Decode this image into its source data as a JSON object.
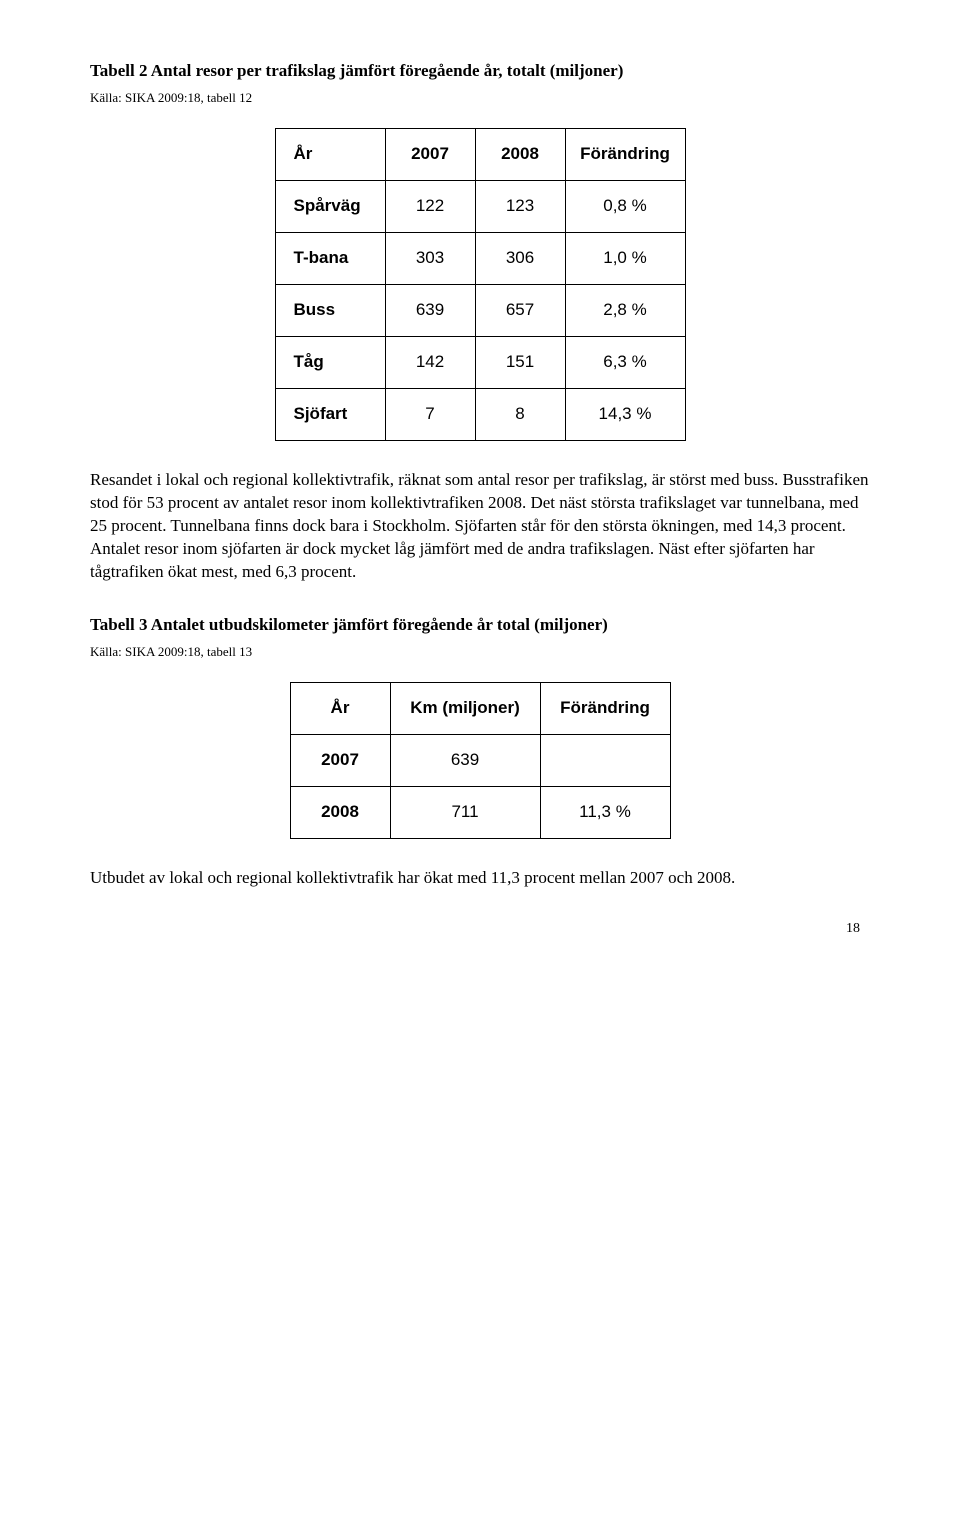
{
  "table1": {
    "title": "Tabell 2 Antal resor per trafikslag jämfört föregående år, totalt (miljoner)",
    "source": "Källa: SIKA 2009:18, tabell 12",
    "headers": {
      "h0": "År",
      "h1": "2007",
      "h2": "2008",
      "h3": "Förändring"
    },
    "rows": [
      {
        "label": "Spårväg",
        "y1": "122",
        "y2": "123",
        "ch": "0,8 %"
      },
      {
        "label": "T-bana",
        "y1": "303",
        "y2": "306",
        "ch": "1,0 %"
      },
      {
        "label": "Buss",
        "y1": "639",
        "y2": "657",
        "ch": "2,8 %"
      },
      {
        "label": "Tåg",
        "y1": "142",
        "y2": "151",
        "ch": "6,3 %"
      },
      {
        "label": "Sjöfart",
        "y1": "7",
        "y2": "8",
        "ch": "14,3 %"
      }
    ]
  },
  "paragraph1": "Resandet i lokal och regional kollektivtrafik, räknat som antal resor per trafikslag, är störst med buss. Busstrafiken stod för 53 procent av antalet resor inom kollektivtrafiken 2008. Det näst största trafikslaget var tunnelbana, med 25 procent. Tunnelbana finns dock bara i Stockholm. Sjöfarten står för den största ökningen, med 14,3 procent. Antalet resor inom sjöfarten är dock mycket låg jämfört med de andra trafikslagen. Näst efter sjöfarten har tågtrafiken ökat mest, med 6,3 procent.",
  "table2": {
    "title": "Tabell 3 Antalet utbudskilometer jämfört föregående år total (miljoner)",
    "source": "Källa: SIKA 2009:18, tabell 13",
    "headers": {
      "h0": "År",
      "h1": "Km (miljoner)",
      "h2": "Förändring"
    },
    "rows": [
      {
        "yr": "2007",
        "km": "639",
        "ch": ""
      },
      {
        "yr": "2008",
        "km": "711",
        "ch": "11,3 %"
      }
    ]
  },
  "paragraph2": "Utbudet av lokal och regional kollektivtrafik har ökat med 11,3 procent mellan 2007 och 2008.",
  "pageNumber": "18"
}
